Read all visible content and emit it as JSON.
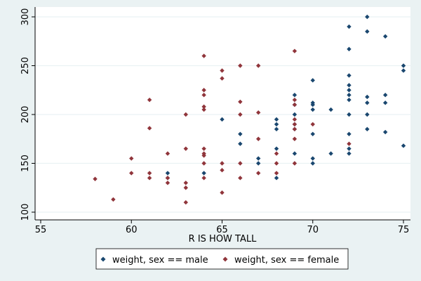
{
  "chart_data": {
    "type": "scatter",
    "title": "",
    "xlabel": "R IS HOW TALL",
    "ylabel": "",
    "xlim": [
      55,
      75
    ],
    "ylim": [
      100,
      300
    ],
    "x_ticks": [
      55,
      60,
      65,
      70,
      75
    ],
    "y_ticks": [
      100,
      150,
      200,
      250,
      300
    ],
    "grid": "horizontal",
    "legend_position": "bottom",
    "series": [
      {
        "name": "weight, sex == male",
        "color": "#1a476f",
        "marker": "diamond",
        "points": [
          [
            62,
            140
          ],
          [
            62,
            135
          ],
          [
            64,
            140
          ],
          [
            65,
            195
          ],
          [
            66,
            180
          ],
          [
            66,
            170
          ],
          [
            67,
            155
          ],
          [
            67,
            150
          ],
          [
            68,
            195
          ],
          [
            68,
            190
          ],
          [
            68,
            185
          ],
          [
            68,
            165
          ],
          [
            68,
            135
          ],
          [
            69,
            220
          ],
          [
            69,
            210
          ],
          [
            69,
            200
          ],
          [
            69,
            190
          ],
          [
            69,
            185
          ],
          [
            69,
            160
          ],
          [
            70,
            235
          ],
          [
            70,
            212
          ],
          [
            70,
            210
          ],
          [
            70,
            205
          ],
          [
            70,
            180
          ],
          [
            70,
            155
          ],
          [
            70,
            150
          ],
          [
            71,
            205
          ],
          [
            71,
            160
          ],
          [
            72,
            290
          ],
          [
            72,
            267
          ],
          [
            72,
            240
          ],
          [
            72,
            230
          ],
          [
            72,
            225
          ],
          [
            72,
            220
          ],
          [
            72,
            215
          ],
          [
            72,
            200
          ],
          [
            72,
            180
          ],
          [
            72,
            165
          ],
          [
            72,
            160
          ],
          [
            73,
            300
          ],
          [
            73,
            285
          ],
          [
            73,
            218
          ],
          [
            73,
            212
          ],
          [
            73,
            200
          ],
          [
            73,
            185
          ],
          [
            74,
            280
          ],
          [
            74,
            220
          ],
          [
            74,
            212
          ],
          [
            74,
            182
          ],
          [
            75,
            250
          ],
          [
            75,
            245
          ],
          [
            75,
            168
          ]
        ]
      },
      {
        "name": "weight, sex == female",
        "color": "#90353b",
        "marker": "diamond",
        "points": [
          [
            58,
            134
          ],
          [
            59,
            113
          ],
          [
            60,
            155
          ],
          [
            60,
            140
          ],
          [
            61,
            215
          ],
          [
            61,
            186
          ],
          [
            61,
            140
          ],
          [
            61,
            135
          ],
          [
            62,
            160
          ],
          [
            62,
            135
          ],
          [
            62,
            130
          ],
          [
            63,
            200
          ],
          [
            63,
            165
          ],
          [
            63,
            130
          ],
          [
            63,
            125
          ],
          [
            63,
            110
          ],
          [
            64,
            260
          ],
          [
            64,
            225
          ],
          [
            64,
            220
          ],
          [
            64,
            208
          ],
          [
            64,
            205
          ],
          [
            64,
            165
          ],
          [
            64,
            160
          ],
          [
            64,
            158
          ],
          [
            64,
            150
          ],
          [
            64,
            135
          ],
          [
            65,
            245
          ],
          [
            65,
            237
          ],
          [
            65,
            150
          ],
          [
            65,
            143
          ],
          [
            65,
            120
          ],
          [
            66,
            250
          ],
          [
            66,
            213
          ],
          [
            66,
            200
          ],
          [
            66,
            150
          ],
          [
            66,
            135
          ],
          [
            67,
            250
          ],
          [
            67,
            202
          ],
          [
            67,
            175
          ],
          [
            67,
            140
          ],
          [
            68,
            160
          ],
          [
            68,
            150
          ],
          [
            68,
            140
          ],
          [
            69,
            265
          ],
          [
            69,
            215
          ],
          [
            69,
            210
          ],
          [
            69,
            195
          ],
          [
            69,
            190
          ],
          [
            69,
            185
          ],
          [
            69,
            175
          ],
          [
            69,
            150
          ],
          [
            70,
            190
          ],
          [
            72,
            170
          ]
        ]
      }
    ]
  }
}
